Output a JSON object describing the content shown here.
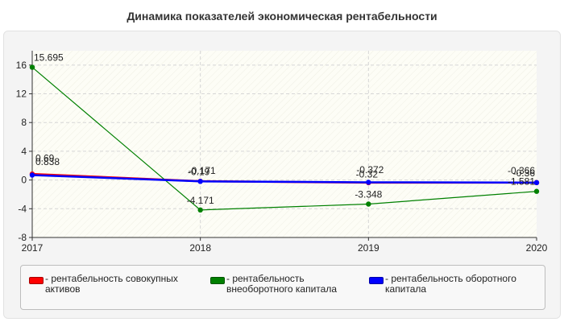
{
  "chart_data": {
    "type": "line",
    "title": "Динамика показателей экономическая рентабельности",
    "x": [
      "2017",
      "2018",
      "2019",
      "2020"
    ],
    "ylim": [
      -8,
      18
    ],
    "yticks": [
      "16",
      "12",
      "8",
      "4",
      "0",
      "-4",
      "-8"
    ],
    "grid": true,
    "legend_position": "bottom",
    "series": [
      {
        "name": "рентабельность совокупных активов",
        "legend_label": "- рентабельность совокупных активов",
        "color": "#ff0000",
        "values": [
          0.838,
          -0.171,
          -0.372,
          -0.366
        ],
        "labels": [
          "0.838",
          "-0.171",
          "-0.372",
          "-0.366"
        ]
      },
      {
        "name": "рентабельность внеоборотного капитала",
        "legend_label": "- рентабельность внеоборотного капитала",
        "color": "#008000",
        "values": [
          15.695,
          -4.171,
          -3.348,
          -1.581
        ],
        "labels": [
          "15.695",
          "-4.171",
          "-3.348",
          "-1.581"
        ]
      },
      {
        "name": "рентабельность оборотного капитала",
        "legend_label": "- рентабельность оборотного капитала",
        "color": "#0000ff",
        "values": [
          0.69,
          -0.19,
          -0.32,
          -0.36
        ],
        "labels": [
          "0.69",
          "-0.19",
          "-0.32",
          "-0.36"
        ]
      }
    ]
  }
}
